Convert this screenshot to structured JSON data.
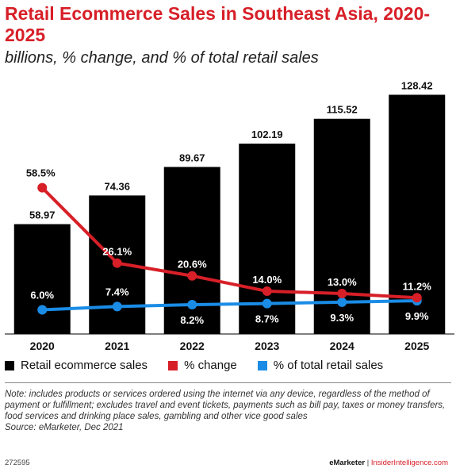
{
  "header": {
    "title": "Retail Ecommerce Sales in Southeast Asia, 2020-2025",
    "subtitle": "billions, % change, and % of total retail sales"
  },
  "colors": {
    "bars": "#000000",
    "change": "#d71f28",
    "share": "#1a8ce6",
    "title": "#d71f28"
  },
  "chart_data": {
    "type": "bar",
    "categories": [
      "2020",
      "2021",
      "2022",
      "2023",
      "2024",
      "2025"
    ],
    "ylim": [
      0,
      135
    ],
    "series": [
      {
        "name": "Retail ecommerce sales",
        "type": "bar",
        "values": [
          58.97,
          74.36,
          89.67,
          102.19,
          115.52,
          128.42
        ],
        "labels": [
          "58.97",
          "74.36",
          "89.67",
          "102.19",
          "115.52",
          "128.42"
        ]
      },
      {
        "name": "% change",
        "type": "line",
        "values": [
          58.5,
          26.1,
          20.6,
          14.0,
          13.0,
          11.2
        ],
        "labels": [
          "58.5%",
          "26.1%",
          "20.6%",
          "14.0%",
          "13.0%",
          "11.2%"
        ]
      },
      {
        "name": "% of total retail sales",
        "type": "line",
        "values": [
          6.0,
          7.4,
          8.2,
          8.7,
          9.3,
          9.9
        ],
        "labels": [
          "6.0%",
          "7.4%",
          "8.2%",
          "8.7%",
          "9.3%",
          "9.9%"
        ]
      }
    ]
  },
  "legend": {
    "bars": "Retail ecommerce sales",
    "change": "% change",
    "share": "% of total retail sales"
  },
  "note": "Note: includes products or services ordered using the internet via any device, regardless of the method of payment or fulfillment; excludes travel and event tickets, payments such as bill pay, taxes or money transfers, food services and drinking place sales, gambling and other vice good sales",
  "source": "Source: eMarketer, Dec 2021",
  "footer": {
    "chart_id": "272595",
    "brand": "eMarketer",
    "site": "InsiderIntelligence.com"
  }
}
